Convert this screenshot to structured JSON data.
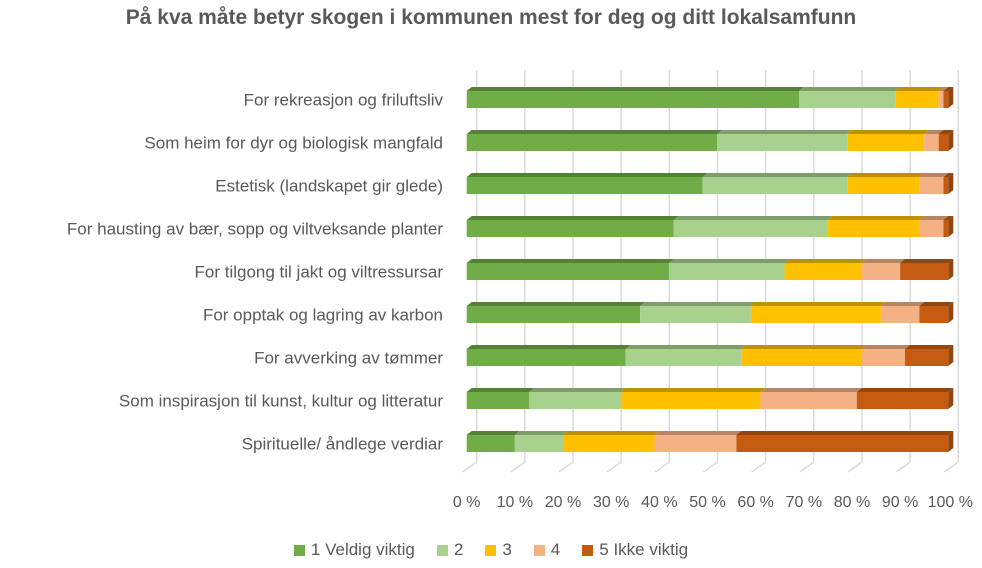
{
  "chart_data": {
    "type": "bar",
    "orientation": "horizontal",
    "stacked": "percent",
    "title": "På kva måte betyr skogen i kommunen mest for deg og ditt lokalsamfunn",
    "xlabel": "",
    "ylabel": "",
    "xlim": [
      0,
      100
    ],
    "grid": true,
    "legend_position": "bottom",
    "x_ticks": [
      "0 %",
      "10 %",
      "20 %",
      "30 %",
      "40 %",
      "50 %",
      "60 %",
      "70 %",
      "80 %",
      "90 %",
      "100 %"
    ],
    "categories": [
      "For rekreasjon og friluftsliv",
      "Som heim for dyr og biologisk mangfald",
      "Estetisk (landskapet gir glede)",
      "For hausting av bær, sopp og viltveksande planter",
      "For tilgong til jakt og viltressursar",
      "For opptak og lagring av karbon",
      "For avverking av tømmer",
      "Som inspirasjon til kunst, kultur og litteratur",
      "Spirituelle/ åndlege verdiar"
    ],
    "series": [
      {
        "name": "1 Veldig viktig",
        "color": "#70AD47",
        "top": "#548235",
        "values": [
          69,
          52,
          49,
          43,
          42,
          36,
          33,
          13,
          10
        ]
      },
      {
        "name": "2",
        "color": "#A9D18E",
        "top": "#7F9D6A",
        "values": [
          20,
          27,
          30,
          32,
          24,
          23,
          24,
          19,
          10
        ]
      },
      {
        "name": "3",
        "color": "#FFC000",
        "top": "#BF9000",
        "values": [
          9,
          16,
          15,
          19,
          16,
          27,
          25,
          29,
          19
        ]
      },
      {
        "name": "4",
        "color": "#F4B183",
        "top": "#B78563",
        "values": [
          1,
          3,
          5,
          5,
          8,
          8,
          9,
          20,
          17
        ]
      },
      {
        "name": "5 Ikke viktig",
        "color": "#C55A11",
        "top": "#94440D",
        "values": [
          1,
          2,
          1,
          1,
          10,
          6,
          9,
          19,
          44
        ]
      }
    ]
  }
}
